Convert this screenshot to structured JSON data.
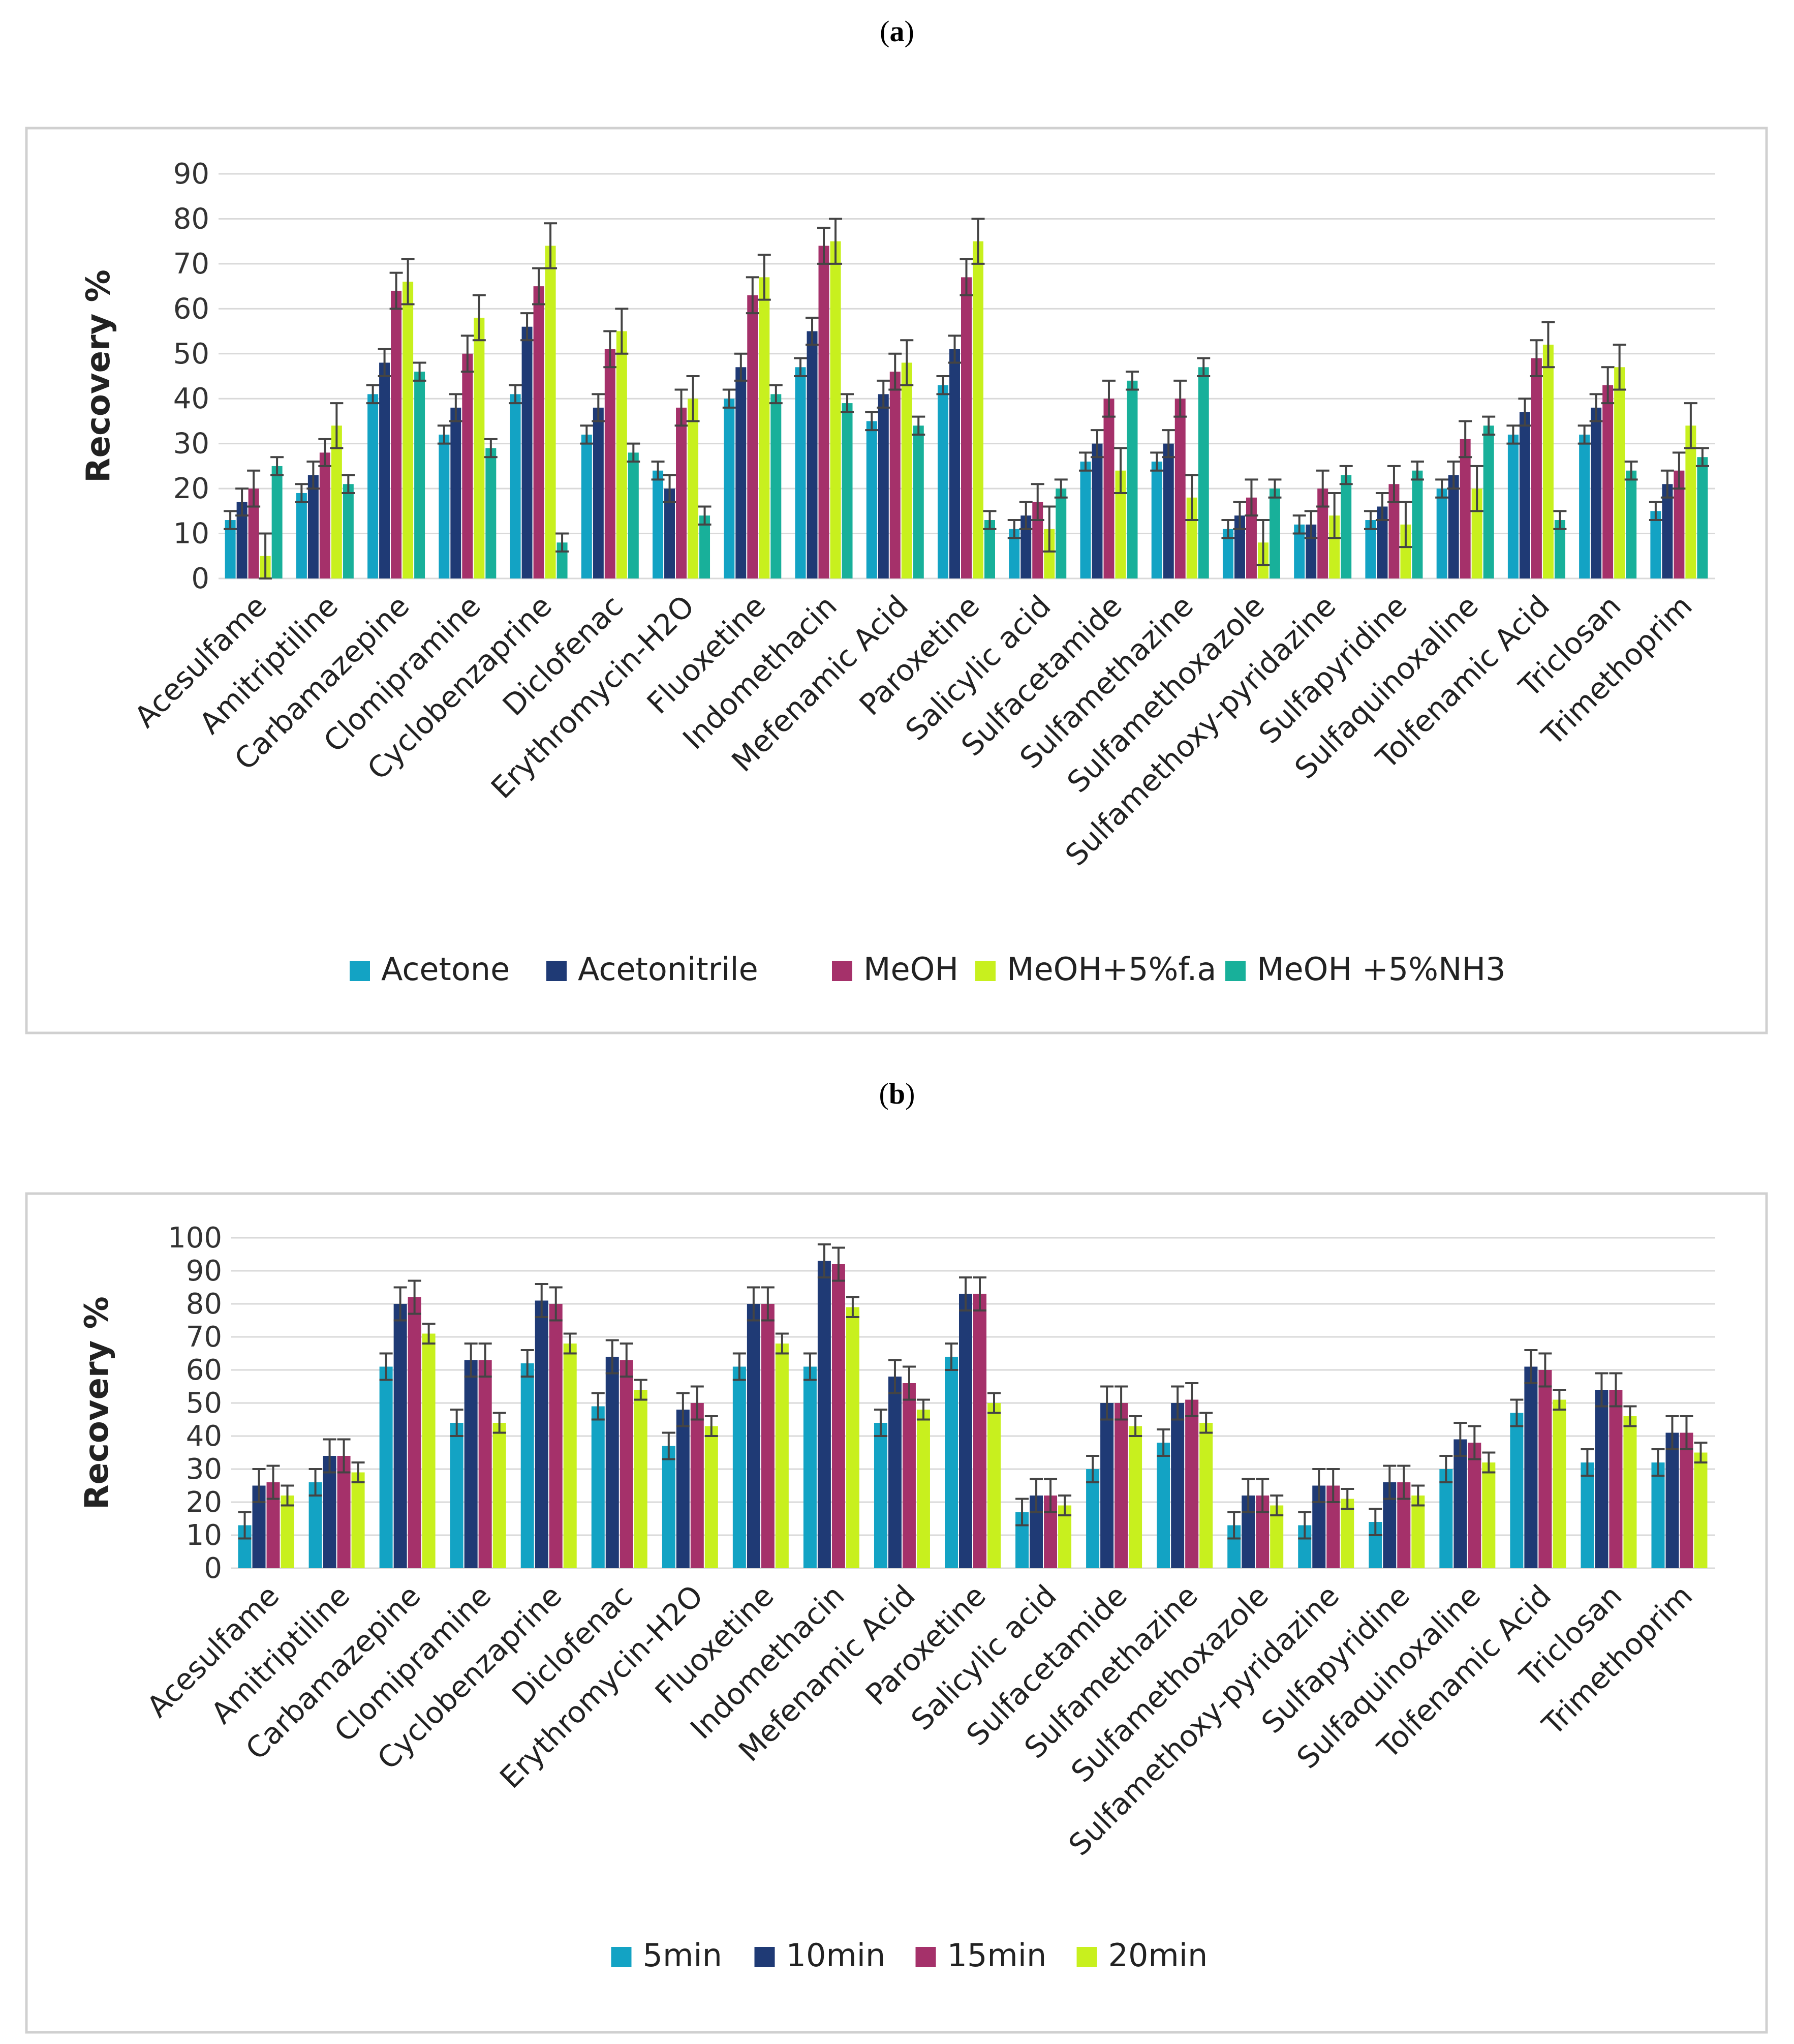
{
  "panels": {
    "a": {
      "label_open": "(",
      "label_letter": "a",
      "label_close": ")"
    },
    "b": {
      "label_open": "(",
      "label_letter": "b",
      "label_close": ")"
    }
  },
  "chart_data": [
    {
      "type": "bar",
      "ylabel": "Recovery %",
      "ylim": [
        0,
        90
      ],
      "yticks": [
        0,
        10,
        20,
        30,
        40,
        50,
        60,
        70,
        80,
        90
      ],
      "grid": true,
      "legend_placement": "bottom",
      "categories": [
        "Acesulfame",
        "Amitriptiline",
        "Carbamazepine",
        "Clomipramine",
        "Cyclobenzaprine",
        "Diclofenac",
        "Erythromycin-H2O",
        "Fluoxetine",
        "Indomethacin",
        "Mefenamic Acid",
        "Paroxetine",
        "Salicylic acid",
        "Sulfacetamide",
        "Sulfamethazine",
        "Sulfamethoxazole",
        "Sulfamethoxy-pyridazine",
        "Sulfapyridine",
        "Sulfaquinoxaline",
        "Tolfenamic Acid",
        "Triclosan",
        "Trimethoprim"
      ],
      "series": [
        {
          "name": "Acetone",
          "color": "#13a3c4",
          "values": [
            13,
            19,
            41,
            32,
            41,
            32,
            24,
            40,
            47,
            35,
            43,
            11,
            26,
            26,
            11,
            12,
            13,
            20,
            32,
            32,
            15
          ],
          "errors": [
            2,
            2,
            2,
            2,
            2,
            2,
            2,
            2,
            2,
            2,
            2,
            2,
            2,
            2,
            2,
            2,
            2,
            2,
            2,
            2,
            2
          ]
        },
        {
          "name": "Acetonitrile",
          "color": "#1f3a75",
          "values": [
            17,
            23,
            48,
            38,
            56,
            38,
            20,
            47,
            55,
            41,
            51,
            14,
            30,
            30,
            14,
            12,
            16,
            23,
            37,
            38,
            21
          ],
          "errors": [
            3,
            3,
            3,
            3,
            3,
            3,
            3,
            3,
            3,
            3,
            3,
            3,
            3,
            3,
            3,
            3,
            3,
            3,
            3,
            3,
            3
          ]
        },
        {
          "name": "MeOH",
          "color": "#a5316a",
          "values": [
            20,
            28,
            64,
            50,
            65,
            51,
            38,
            63,
            74,
            46,
            67,
            17,
            40,
            40,
            18,
            20,
            21,
            31,
            49,
            43,
            24
          ],
          "errors": [
            4,
            3,
            4,
            4,
            4,
            4,
            4,
            4,
            4,
            4,
            4,
            4,
            4,
            4,
            4,
            4,
            4,
            4,
            4,
            4,
            4
          ]
        },
        {
          "name": "MeOH+5%f.a",
          "color": "#c8f01e",
          "values": [
            5,
            34,
            66,
            58,
            74,
            55,
            40,
            67,
            75,
            48,
            75,
            11,
            24,
            18,
            8,
            14,
            12,
            20,
            52,
            47,
            34
          ],
          "errors": [
            5,
            5,
            5,
            5,
            5,
            5,
            5,
            5,
            5,
            5,
            5,
            5,
            5,
            5,
            5,
            5,
            5,
            5,
            5,
            5,
            5
          ]
        },
        {
          "name": "MeOH +5%NH3",
          "color": "#18b09a",
          "values": [
            25,
            21,
            46,
            29,
            8,
            28,
            14,
            41,
            39,
            34,
            13,
            20,
            44,
            47,
            20,
            23,
            24,
            34,
            13,
            24,
            27
          ],
          "errors": [
            2,
            2,
            2,
            2,
            2,
            2,
            2,
            2,
            2,
            2,
            2,
            2,
            2,
            2,
            2,
            2,
            2,
            2,
            2,
            2,
            2
          ]
        }
      ]
    },
    {
      "type": "bar",
      "ylabel": "Recovery %",
      "ylim": [
        0,
        100
      ],
      "yticks": [
        0,
        10,
        20,
        30,
        40,
        50,
        60,
        70,
        80,
        90,
        100
      ],
      "grid": true,
      "legend_placement": "bottom",
      "categories": [
        "Acesulfame",
        "Amitriptiline",
        "Carbamazepine",
        "Clomipramine",
        "Cyclobenzaprine",
        "Diclofenac",
        "Erythromycin-H2O",
        "Fluoxetine",
        "Indomethacin",
        "Mefenamic Acid",
        "Paroxetine",
        "Salicylic acid",
        "Sulfacetamide",
        "Sulfamethazine",
        "Sulfamethoxazole",
        "Sulfamethoxy-pyridazine",
        "Sulfapyridine",
        "Sulfaquinoxaline",
        "Tolfenamic Acid",
        "Triclosan",
        "Trimethoprim"
      ],
      "series": [
        {
          "name": "5min",
          "color": "#13a3c4",
          "values": [
            13,
            26,
            61,
            44,
            62,
            49,
            37,
            61,
            61,
            44,
            64,
            17,
            30,
            38,
            13,
            13,
            14,
            30,
            47,
            32,
            32
          ],
          "errors": [
            4,
            4,
            4,
            4,
            4,
            4,
            4,
            4,
            4,
            4,
            4,
            4,
            4,
            4,
            4,
            4,
            4,
            4,
            4,
            4,
            4
          ]
        },
        {
          "name": "10min",
          "color": "#1f3a75",
          "values": [
            25,
            34,
            80,
            63,
            81,
            64,
            48,
            80,
            93,
            58,
            83,
            22,
            50,
            50,
            22,
            25,
            26,
            39,
            61,
            54,
            41
          ],
          "errors": [
            5,
            5,
            5,
            5,
            5,
            5,
            5,
            5,
            5,
            5,
            5,
            5,
            5,
            5,
            5,
            5,
            5,
            5,
            5,
            5,
            5
          ]
        },
        {
          "name": "15min",
          "color": "#a5316a",
          "values": [
            26,
            34,
            82,
            63,
            80,
            63,
            50,
            80,
            92,
            56,
            83,
            22,
            50,
            51,
            22,
            25,
            26,
            38,
            60,
            54,
            41
          ],
          "errors": [
            5,
            5,
            5,
            5,
            5,
            5,
            5,
            5,
            5,
            5,
            5,
            5,
            5,
            5,
            5,
            5,
            5,
            5,
            5,
            5,
            5
          ]
        },
        {
          "name": "20min",
          "color": "#c8f01e",
          "values": [
            22,
            29,
            71,
            44,
            68,
            54,
            43,
            68,
            79,
            48,
            50,
            19,
            43,
            44,
            19,
            21,
            22,
            32,
            51,
            46,
            35
          ],
          "errors": [
            3,
            3,
            3,
            3,
            3,
            3,
            3,
            3,
            3,
            3,
            3,
            3,
            3,
            3,
            3,
            3,
            3,
            3,
            3,
            3,
            3
          ]
        }
      ]
    }
  ]
}
